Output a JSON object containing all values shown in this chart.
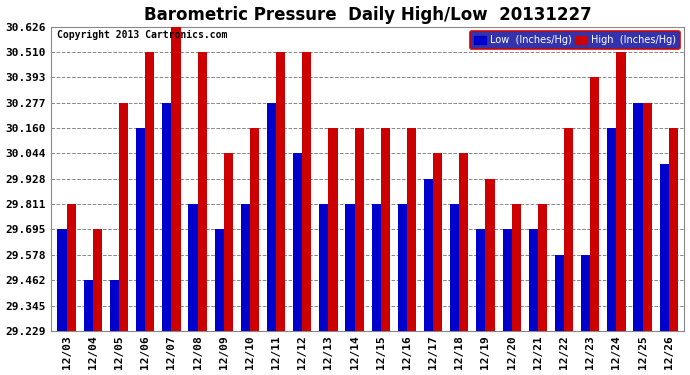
{
  "title": "Barometric Pressure  Daily High/Low  20131227",
  "copyright": "Copyright 2013 Cartronics.com",
  "dates": [
    "12/03",
    "12/04",
    "12/05",
    "12/06",
    "12/07",
    "12/08",
    "12/09",
    "12/10",
    "12/11",
    "12/12",
    "12/13",
    "12/14",
    "12/15",
    "12/16",
    "12/17",
    "12/18",
    "12/19",
    "12/20",
    "12/21",
    "12/22",
    "12/23",
    "12/24",
    "12/25",
    "12/26"
  ],
  "low_values": [
    29.695,
    29.462,
    29.462,
    30.16,
    30.277,
    29.811,
    29.695,
    29.811,
    30.277,
    30.044,
    29.811,
    29.811,
    29.811,
    29.811,
    29.928,
    29.811,
    29.695,
    29.695,
    29.695,
    29.578,
    29.578,
    30.16,
    30.277,
    29.994
  ],
  "high_values": [
    29.811,
    29.695,
    30.277,
    30.51,
    30.626,
    30.51,
    30.044,
    30.16,
    30.51,
    30.51,
    30.16,
    30.16,
    30.16,
    30.16,
    30.044,
    30.044,
    29.928,
    29.811,
    29.811,
    30.16,
    30.393,
    30.51,
    30.277,
    30.16
  ],
  "low_color": "#0000cc",
  "high_color": "#cc0000",
  "bg_color": "#ffffff",
  "grid_color": "#888888",
  "ylim_min": 29.229,
  "ylim_max": 30.626,
  "yticks": [
    29.229,
    29.345,
    29.462,
    29.578,
    29.695,
    29.811,
    29.928,
    30.044,
    30.16,
    30.277,
    30.393,
    30.51,
    30.626
  ],
  "title_fontsize": 12,
  "tick_fontsize": 8,
  "legend_labels": [
    "Low  (Inches/Hg)",
    "High  (Inches/Hg)"
  ],
  "legend_colors": [
    "#0000cc",
    "#cc0000"
  ]
}
